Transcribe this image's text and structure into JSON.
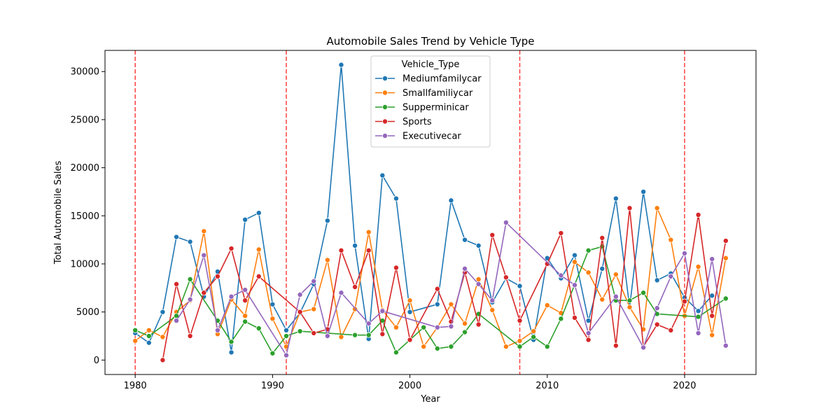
{
  "chart_data": {
    "type": "line",
    "title": "Automobile Sales Trend by Vehicle Type",
    "xlabel": "Year",
    "ylabel": "Total Automobile Sales",
    "xlim": [
      1977.8,
      2025.2
    ],
    "ylim": [
      -1500,
      32200
    ],
    "xticks": [
      1980,
      1990,
      2000,
      2010,
      2020
    ],
    "yticks": [
      0,
      5000,
      10000,
      15000,
      20000,
      25000,
      30000
    ],
    "grid": false,
    "legend": {
      "title": "Vehicle_Type",
      "placement": "upper-center"
    },
    "vlines": {
      "x": [
        1980,
        1991,
        2008,
        2020
      ],
      "color": "#ff0000",
      "style": "dashed"
    },
    "series": [
      {
        "name": "Mediumfamilycar",
        "color": "#1f77b4",
        "points": [
          [
            1980,
            2800
          ],
          [
            1981,
            1800
          ],
          [
            1982,
            5000
          ],
          [
            1983,
            12800
          ],
          [
            1984,
            12300
          ],
          [
            1985,
            6600
          ],
          [
            1986,
            9200
          ],
          [
            1987,
            800
          ],
          [
            1988,
            14600
          ],
          [
            1989,
            15300
          ],
          [
            1990,
            5800
          ],
          [
            1991,
            3100
          ],
          [
            1992,
            4900
          ],
          [
            1993,
            7900
          ],
          [
            1994,
            14500
          ],
          [
            1995,
            30700
          ],
          [
            1996,
            11900
          ],
          [
            1997,
            2200
          ],
          [
            1998,
            19200
          ],
          [
            1999,
            16800
          ],
          [
            2000,
            5000
          ],
          [
            2002,
            5800
          ],
          [
            2003,
            16600
          ],
          [
            2004,
            12500
          ],
          [
            2005,
            11900
          ],
          [
            2006,
            6000
          ],
          [
            2007,
            8500
          ],
          [
            2008,
            7700
          ],
          [
            2009,
            2100
          ],
          [
            2010,
            10600
          ],
          [
            2011,
            8500
          ],
          [
            2012,
            10900
          ],
          [
            2013,
            4100
          ],
          [
            2014,
            9500
          ],
          [
            2015,
            16800
          ],
          [
            2016,
            5500
          ],
          [
            2017,
            17500
          ],
          [
            2018,
            8300
          ],
          [
            2019,
            9000
          ],
          [
            2020,
            6500
          ],
          [
            2021,
            5100
          ],
          [
            2022,
            6700
          ]
        ]
      },
      {
        "name": "Smallfamiliycar",
        "color": "#ff7f0e",
        "points": [
          [
            1980,
            2000
          ],
          [
            1981,
            3100
          ],
          [
            1982,
            2400
          ],
          [
            1983,
            5000
          ],
          [
            1984,
            6200
          ],
          [
            1985,
            13400
          ],
          [
            1986,
            2700
          ],
          [
            1987,
            6300
          ],
          [
            1988,
            4600
          ],
          [
            1989,
            11500
          ],
          [
            1990,
            4300
          ],
          [
            1991,
            1400
          ],
          [
            1992,
            5000
          ],
          [
            1993,
            5300
          ],
          [
            1994,
            10400
          ],
          [
            1995,
            2400
          ],
          [
            1996,
            5300
          ],
          [
            1997,
            13300
          ],
          [
            1998,
            5200
          ],
          [
            1999,
            3400
          ],
          [
            2000,
            6200
          ],
          [
            2001,
            1400
          ],
          [
            2002,
            3400
          ],
          [
            2003,
            5800
          ],
          [
            2004,
            3800
          ],
          [
            2005,
            8400
          ],
          [
            2006,
            5200
          ],
          [
            2007,
            1400
          ],
          [
            2008,
            2000
          ],
          [
            2009,
            3000
          ],
          [
            2010,
            5700
          ],
          [
            2011,
            4900
          ],
          [
            2012,
            10200
          ],
          [
            2013,
            9100
          ],
          [
            2014,
            6300
          ],
          [
            2015,
            8900
          ],
          [
            2016,
            5500
          ],
          [
            2017,
            3200
          ],
          [
            2018,
            15800
          ],
          [
            2019,
            12500
          ],
          [
            2020,
            4600
          ],
          [
            2021,
            9700
          ],
          [
            2022,
            2600
          ],
          [
            2023,
            10600
          ]
        ]
      },
      {
        "name": "Supperminicar",
        "color": "#2ca02c",
        "points": [
          [
            1980,
            3100
          ],
          [
            1981,
            2500
          ],
          [
            1983,
            4600
          ],
          [
            1984,
            8400
          ],
          [
            1986,
            4100
          ],
          [
            1987,
            1900
          ],
          [
            1988,
            4000
          ],
          [
            1989,
            3300
          ],
          [
            1990,
            700
          ],
          [
            1991,
            2500
          ],
          [
            1992,
            3000
          ],
          [
            1996,
            2600
          ],
          [
            1997,
            2600
          ],
          [
            1998,
            4100
          ],
          [
            1999,
            800
          ],
          [
            2001,
            3400
          ],
          [
            2002,
            1200
          ],
          [
            2003,
            1400
          ],
          [
            2004,
            2900
          ],
          [
            2005,
            4800
          ],
          [
            2008,
            1400
          ],
          [
            2009,
            2400
          ],
          [
            2010,
            1400
          ],
          [
            2011,
            4300
          ],
          [
            2013,
            11400
          ],
          [
            2014,
            11800
          ],
          [
            2015,
            6200
          ],
          [
            2016,
            6200
          ],
          [
            2017,
            7000
          ],
          [
            2018,
            4800
          ],
          [
            2021,
            4500
          ],
          [
            2023,
            6400
          ]
        ]
      },
      {
        "name": "Sports",
        "color": "#d62728",
        "points": [
          [
            1982,
            0
          ],
          [
            1983,
            7900
          ],
          [
            1984,
            2500
          ],
          [
            1985,
            7000
          ],
          [
            1986,
            8700
          ],
          [
            1987,
            11600
          ],
          [
            1988,
            6200
          ],
          [
            1989,
            8700
          ],
          [
            1992,
            5000
          ],
          [
            1993,
            2800
          ],
          [
            1994,
            3200
          ],
          [
            1995,
            11400
          ],
          [
            1996,
            7600
          ],
          [
            1997,
            11400
          ],
          [
            1998,
            2700
          ],
          [
            1999,
            9600
          ],
          [
            2000,
            2100
          ],
          [
            2002,
            7400
          ],
          [
            2003,
            4000
          ],
          [
            2004,
            9100
          ],
          [
            2005,
            3700
          ],
          [
            2006,
            13000
          ],
          [
            2007,
            8600
          ],
          [
            2008,
            4100
          ],
          [
            2010,
            10000
          ],
          [
            2011,
            13200
          ],
          [
            2012,
            4400
          ],
          [
            2013,
            2100
          ],
          [
            2014,
            12700
          ],
          [
            2015,
            1500
          ],
          [
            2016,
            15800
          ],
          [
            2017,
            1400
          ],
          [
            2018,
            3700
          ],
          [
            2019,
            3100
          ],
          [
            2020,
            6100
          ],
          [
            2021,
            15100
          ],
          [
            2022,
            4600
          ],
          [
            2023,
            12400
          ]
        ]
      },
      {
        "name": "Executivecar",
        "color": "#9467bd",
        "points": [
          [
            1983,
            4100
          ],
          [
            1984,
            6300
          ],
          [
            1985,
            10900
          ],
          [
            1986,
            3100
          ],
          [
            1987,
            6600
          ],
          [
            1988,
            7300
          ],
          [
            1991,
            500
          ],
          [
            1992,
            6800
          ],
          [
            1993,
            8200
          ],
          [
            1994,
            2500
          ],
          [
            1995,
            7000
          ],
          [
            1997,
            3800
          ],
          [
            1998,
            5100
          ],
          [
            2002,
            3400
          ],
          [
            2003,
            3500
          ],
          [
            2004,
            9500
          ],
          [
            2005,
            7900
          ],
          [
            2006,
            6200
          ],
          [
            2007,
            14300
          ],
          [
            2011,
            8800
          ],
          [
            2012,
            7800
          ],
          [
            2013,
            2800
          ],
          [
            2015,
            6600
          ],
          [
            2017,
            1300
          ],
          [
            2018,
            5400
          ],
          [
            2019,
            8700
          ],
          [
            2020,
            11100
          ],
          [
            2021,
            2800
          ],
          [
            2022,
            10500
          ],
          [
            2023,
            1500
          ]
        ]
      }
    ]
  }
}
